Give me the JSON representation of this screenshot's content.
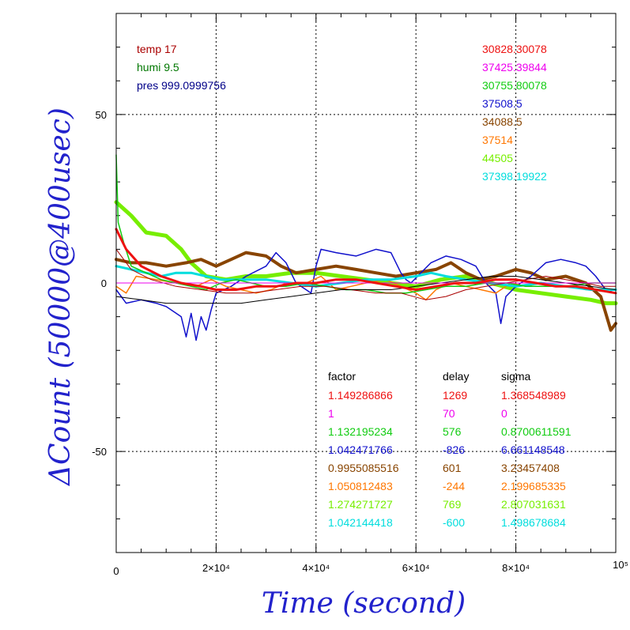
{
  "chart_data": {
    "type": "line",
    "xlabel": "Time (second)",
    "ylabel": "ΔCount (50000@400usec)",
    "xlim": [
      0,
      100000
    ],
    "ylim": [
      -80,
      80
    ],
    "grid": true,
    "x_ticks": [
      {
        "value": 0,
        "label": "0"
      },
      {
        "value": 20000,
        "label": "2×10⁴"
      },
      {
        "value": 40000,
        "label": "4×10⁴"
      },
      {
        "value": 60000,
        "label": "6×10⁴"
      },
      {
        "value": 80000,
        "label": "8×10⁴"
      },
      {
        "value": 100000,
        "label": "10⁵"
      }
    ],
    "y_ticks": [
      {
        "value": 50,
        "label": "50"
      },
      {
        "value": 0,
        "label": "0"
      },
      {
        "value": -50,
        "label": "-50"
      }
    ],
    "env": [
      {
        "text": "temp 17",
        "color": "#aa0000"
      },
      {
        "text": "humi 9.5",
        "color": "#007700"
      },
      {
        "text": "pres 999.0999756",
        "color": "#000088"
      }
    ],
    "legend": [
      {
        "text": "30828.30078",
        "color": "#ee1111"
      },
      {
        "text": "37425.39844",
        "color": "#ee00ee"
      },
      {
        "text": "30755.80078",
        "color": "#11cc11"
      },
      {
        "text": "37508.5",
        "color": "#1111cc"
      },
      {
        "text": "34088.5",
        "color": "#884400"
      },
      {
        "text": "37514",
        "color": "#ff7700"
      },
      {
        "text": "44505",
        "color": "#77ee00"
      },
      {
        "text": "37398.19922",
        "color": "#00dddd"
      }
    ],
    "stats_headers": [
      "factor",
      "delay",
      "sigma"
    ],
    "stats": [
      {
        "factor": "1.149286866",
        "delay": "1269",
        "sigma": "1.368548989",
        "color": "#ee1111"
      },
      {
        "factor": "1",
        "delay": "70",
        "sigma": "0",
        "color": "#ee00ee"
      },
      {
        "factor": "1.132195234",
        "delay": "576",
        "sigma": "0.8700611591",
        "color": "#11cc11"
      },
      {
        "factor": "1.042471766",
        "delay": "-826",
        "sigma": "6.661148548",
        "color": "#1111cc"
      },
      {
        "factor": "0.9955085516",
        "delay": "601",
        "sigma": "3.23457408",
        "color": "#884400"
      },
      {
        "factor": "1.050812483",
        "delay": "-244",
        "sigma": "2.199685335",
        "color": "#ff7700"
      },
      {
        "factor": "1.274271727",
        "delay": "769",
        "sigma": "2.807031631",
        "color": "#77ee00"
      },
      {
        "factor": "1.042144418",
        "delay": "-600",
        "sigma": "1.498678684",
        "color": "#00dddd"
      }
    ],
    "series": [
      {
        "color": "#77ee00",
        "width": 5,
        "points": [
          [
            0,
            24
          ],
          [
            3000,
            20
          ],
          [
            6000,
            15
          ],
          [
            10000,
            14
          ],
          [
            13000,
            10
          ],
          [
            15000,
            6
          ],
          [
            18000,
            2
          ],
          [
            22000,
            1
          ],
          [
            26000,
            2
          ],
          [
            30000,
            2
          ],
          [
            35000,
            3
          ],
          [
            40000,
            3
          ],
          [
            45000,
            2
          ],
          [
            50000,
            1
          ],
          [
            55000,
            0
          ],
          [
            60000,
            -1
          ],
          [
            65000,
            1
          ],
          [
            70000,
            2
          ],
          [
            75000,
            0
          ],
          [
            80000,
            -2
          ],
          [
            85000,
            -3
          ],
          [
            90000,
            -4
          ],
          [
            95000,
            -5
          ],
          [
            98000,
            -6
          ],
          [
            100000,
            -6
          ]
        ]
      },
      {
        "color": "#884400",
        "width": 4,
        "points": [
          [
            0,
            7
          ],
          [
            3000,
            6
          ],
          [
            6000,
            6
          ],
          [
            10000,
            5
          ],
          [
            14000,
            6
          ],
          [
            17000,
            7
          ],
          [
            20000,
            5
          ],
          [
            23000,
            7
          ],
          [
            26000,
            9
          ],
          [
            30000,
            8
          ],
          [
            33000,
            5
          ],
          [
            36000,
            3
          ],
          [
            40000,
            4
          ],
          [
            44000,
            5
          ],
          [
            48000,
            4
          ],
          [
            52000,
            3
          ],
          [
            56000,
            2
          ],
          [
            60000,
            3
          ],
          [
            64000,
            4
          ],
          [
            67000,
            6
          ],
          [
            70000,
            3
          ],
          [
            73000,
            1
          ],
          [
            76000,
            2
          ],
          [
            80000,
            4
          ],
          [
            83000,
            3
          ],
          [
            86000,
            1
          ],
          [
            90000,
            2
          ],
          [
            94000,
            0
          ],
          [
            97000,
            -4
          ],
          [
            99000,
            -14
          ],
          [
            100000,
            -12
          ]
        ]
      },
      {
        "color": "#1111cc",
        "width": 1.5,
        "points": [
          [
            0,
            -2
          ],
          [
            2000,
            -6
          ],
          [
            5000,
            -5
          ],
          [
            8000,
            -6
          ],
          [
            10000,
            -7
          ],
          [
            13000,
            -10
          ],
          [
            14000,
            -16
          ],
          [
            15000,
            -9
          ],
          [
            16000,
            -17
          ],
          [
            17000,
            -10
          ],
          [
            18000,
            -14
          ],
          [
            19000,
            -8
          ],
          [
            20000,
            -3
          ],
          [
            23000,
            -1
          ],
          [
            26000,
            2
          ],
          [
            30000,
            5
          ],
          [
            32000,
            9
          ],
          [
            34000,
            6
          ],
          [
            36000,
            0
          ],
          [
            38000,
            -2
          ],
          [
            39000,
            -3
          ],
          [
            40000,
            5
          ],
          [
            41000,
            10
          ],
          [
            44000,
            9
          ],
          [
            48000,
            8
          ],
          [
            52000,
            10
          ],
          [
            55000,
            9
          ],
          [
            57000,
            3
          ],
          [
            58000,
            1
          ],
          [
            59000,
            0
          ],
          [
            61000,
            3
          ],
          [
            63000,
            6
          ],
          [
            66000,
            8
          ],
          [
            69000,
            7
          ],
          [
            72000,
            5
          ],
          [
            74000,
            0
          ],
          [
            76000,
            -3
          ],
          [
            77000,
            -12
          ],
          [
            78000,
            -4
          ],
          [
            80000,
            -1
          ],
          [
            83000,
            2
          ],
          [
            86000,
            6
          ],
          [
            89000,
            7
          ],
          [
            92000,
            6
          ],
          [
            94000,
            5
          ],
          [
            96000,
            2
          ],
          [
            98000,
            -2
          ],
          [
            100000,
            -3
          ]
        ]
      },
      {
        "color": "#ff7700",
        "width": 1.5,
        "points": [
          [
            0,
            -1
          ],
          [
            2000,
            -3
          ],
          [
            4000,
            2
          ],
          [
            8000,
            1
          ],
          [
            12000,
            0
          ],
          [
            16000,
            -1
          ],
          [
            19000,
            1
          ],
          [
            22000,
            -1
          ],
          [
            25000,
            -2
          ],
          [
            28000,
            -3
          ],
          [
            31000,
            -2
          ],
          [
            34000,
            0
          ],
          [
            38000,
            0
          ],
          [
            41000,
            2
          ],
          [
            44000,
            -2
          ],
          [
            47000,
            -1
          ],
          [
            50000,
            0
          ],
          [
            54000,
            1
          ],
          [
            57000,
            -1
          ],
          [
            60000,
            -3
          ],
          [
            62000,
            -5
          ],
          [
            64000,
            -2
          ],
          [
            67000,
            0
          ],
          [
            70000,
            -1
          ],
          [
            73000,
            -2
          ],
          [
            76000,
            -3
          ],
          [
            79000,
            0
          ],
          [
            82000,
            -1
          ],
          [
            85000,
            0
          ],
          [
            88000,
            -1
          ],
          [
            91000,
            -1
          ],
          [
            94000,
            -2
          ],
          [
            97000,
            -2
          ],
          [
            100000,
            -3
          ]
        ]
      },
      {
        "color": "#00dddd",
        "width": 3,
        "points": [
          [
            0,
            5
          ],
          [
            3000,
            4
          ],
          [
            6000,
            3
          ],
          [
            9000,
            2
          ],
          [
            12000,
            3
          ],
          [
            15000,
            3
          ],
          [
            18000,
            2
          ],
          [
            21000,
            1
          ],
          [
            25000,
            1
          ],
          [
            30000,
            1
          ],
          [
            35000,
            0
          ],
          [
            40000,
            -1
          ],
          [
            45000,
            0
          ],
          [
            50000,
            1
          ],
          [
            55000,
            1
          ],
          [
            60000,
            2
          ],
          [
            63000,
            3
          ],
          [
            66000,
            2
          ],
          [
            70000,
            1
          ],
          [
            75000,
            0
          ],
          [
            80000,
            -1
          ],
          [
            85000,
            0
          ],
          [
            90000,
            -1
          ],
          [
            95000,
            -2
          ],
          [
            100000,
            -2
          ]
        ]
      },
      {
        "color": "#11cc11",
        "width": 1.5,
        "points": [
          [
            0,
            38
          ],
          [
            400,
            18
          ],
          [
            1500,
            12
          ],
          [
            3000,
            5
          ],
          [
            6000,
            3
          ],
          [
            9000,
            1
          ],
          [
            12000,
            0
          ],
          [
            15000,
            -1
          ],
          [
            18000,
            -2
          ],
          [
            21000,
            0
          ],
          [
            24000,
            1
          ],
          [
            27000,
            0
          ],
          [
            30000,
            -1
          ],
          [
            34000,
            -1
          ],
          [
            38000,
            0
          ],
          [
            42000,
            -1
          ],
          [
            46000,
            -2
          ],
          [
            50000,
            -2
          ],
          [
            54000,
            -3
          ],
          [
            58000,
            -3
          ],
          [
            62000,
            -2
          ],
          [
            66000,
            -1
          ],
          [
            70000,
            -1
          ],
          [
            74000,
            0
          ],
          [
            78000,
            0
          ],
          [
            82000,
            -1
          ],
          [
            86000,
            -1
          ],
          [
            90000,
            -1
          ],
          [
            95000,
            0
          ],
          [
            100000,
            0
          ]
        ]
      },
      {
        "color": "#aa0000",
        "width": 1,
        "points": [
          [
            0,
            10
          ],
          [
            3000,
            4
          ],
          [
            7000,
            1
          ],
          [
            12000,
            -1
          ],
          [
            17000,
            -2
          ],
          [
            22000,
            -3
          ],
          [
            27000,
            -3
          ],
          [
            32000,
            -2
          ],
          [
            37000,
            -1
          ],
          [
            42000,
            -1
          ],
          [
            47000,
            -2
          ],
          [
            52000,
            -3
          ],
          [
            57000,
            -3
          ],
          [
            62000,
            -5
          ],
          [
            66000,
            -4
          ],
          [
            70000,
            -2
          ],
          [
            74000,
            -1
          ],
          [
            78000,
            0
          ],
          [
            82000,
            1
          ],
          [
            86000,
            2
          ],
          [
            90000,
            1
          ],
          [
            94000,
            0
          ],
          [
            97000,
            -1
          ],
          [
            100000,
            -1
          ]
        ]
      },
      {
        "color": "#000000",
        "width": 1,
        "points": [
          [
            0,
            -4
          ],
          [
            5000,
            -5
          ],
          [
            10000,
            -6
          ],
          [
            15000,
            -6
          ],
          [
            20000,
            -6
          ],
          [
            25000,
            -6
          ],
          [
            30000,
            -5
          ],
          [
            35000,
            -4
          ],
          [
            40000,
            -3
          ],
          [
            45000,
            -2
          ],
          [
            50000,
            -2
          ],
          [
            55000,
            -2
          ],
          [
            60000,
            -1
          ],
          [
            65000,
            0
          ],
          [
            70000,
            1
          ],
          [
            75000,
            2
          ],
          [
            80000,
            2
          ],
          [
            85000,
            1
          ],
          [
            90000,
            0
          ],
          [
            95000,
            -1
          ],
          [
            100000,
            -2
          ]
        ]
      },
      {
        "color": "#ee00ee",
        "width": 1,
        "points": [
          [
            0,
            0
          ],
          [
            100000,
            0
          ]
        ]
      },
      {
        "color": "#ee1111",
        "width": 3,
        "points": [
          [
            0,
            16
          ],
          [
            2000,
            10
          ],
          [
            5000,
            5
          ],
          [
            9000,
            2
          ],
          [
            13000,
            0
          ],
          [
            17000,
            -1
          ],
          [
            20000,
            -2
          ],
          [
            24000,
            -2
          ],
          [
            28000,
            -1
          ],
          [
            32000,
            -1
          ],
          [
            36000,
            0
          ],
          [
            40000,
            0
          ],
          [
            44000,
            1
          ],
          [
            48000,
            1
          ],
          [
            52000,
            0
          ],
          [
            56000,
            -1
          ],
          [
            60000,
            -2
          ],
          [
            64000,
            -1
          ],
          [
            68000,
            0
          ],
          [
            72000,
            0
          ],
          [
            76000,
            1
          ],
          [
            80000,
            1
          ],
          [
            84000,
            0
          ],
          [
            88000,
            -1
          ],
          [
            92000,
            -1
          ],
          [
            96000,
            -2
          ],
          [
            100000,
            -3
          ]
        ]
      }
    ]
  }
}
